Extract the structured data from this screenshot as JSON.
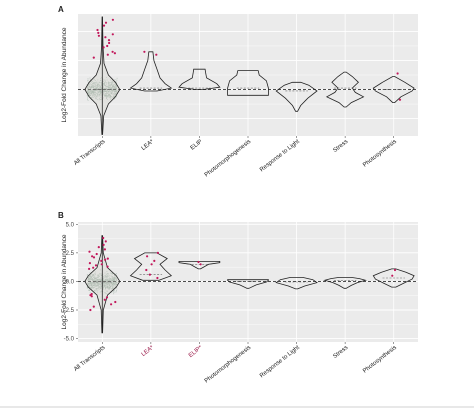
{
  "colors": {
    "panel_bg": "#ebebeb",
    "grid": "#ffffff",
    "violin_stroke": "#222222",
    "jitter_gray": "#9fb3a6",
    "highlight": "#c2185b",
    "highlight_label": "#9b1b4a"
  },
  "chart_data": [
    {
      "type": "violin",
      "panel_label": "A",
      "title": "",
      "ylabel": "Log2-Fold Change in Abundance",
      "xlabel": "",
      "ylim": [
        -1.6,
        2.6
      ],
      "y_ticks": [],
      "grid": true,
      "zero_line": 0,
      "categories": [
        "All Transcripts",
        "LEA*",
        "ELIP",
        "Photomorphogenesis",
        "Response to Light",
        "Stress",
        "Photosynthesis"
      ],
      "highlighted_labels": [],
      "violins": [
        {
          "category": "All Transcripts",
          "min": -1.55,
          "max": 2.5,
          "median": 0.0,
          "profile": [
            [
              -1.55,
              0.02
            ],
            [
              -0.9,
              0.08
            ],
            [
              -0.5,
              0.35
            ],
            [
              -0.25,
              0.75
            ],
            [
              0,
              1.0
            ],
            [
              0.25,
              0.75
            ],
            [
              0.5,
              0.35
            ],
            [
              0.9,
              0.1
            ],
            [
              1.5,
              0.04
            ],
            [
              2.5,
              0.01
            ]
          ]
        },
        {
          "category": "LEA*",
          "min": -0.05,
          "max": 1.3,
          "median": 0.05,
          "profile": [
            [
              -0.05,
              0.3
            ],
            [
              0.05,
              1.0
            ],
            [
              0.2,
              0.7
            ],
            [
              0.4,
              0.45
            ],
            [
              0.7,
              0.3
            ],
            [
              1.0,
              0.15
            ],
            [
              1.3,
              0.1
            ]
          ]
        },
        {
          "category": "ELIP",
          "min": 0.0,
          "max": 0.7,
          "median": 0.05,
          "profile": [
            [
              0,
              0.2
            ],
            [
              0.08,
              1.0
            ],
            [
              0.2,
              0.85
            ],
            [
              0.4,
              0.35
            ],
            [
              0.6,
              0.3
            ],
            [
              0.7,
              0.28
            ]
          ]
        },
        {
          "category": "Photomorphogenesis",
          "min": -0.2,
          "max": 0.65,
          "median": 0.05,
          "profile": [
            [
              -0.2,
              1.0
            ],
            [
              0.05,
              1.0
            ],
            [
              0.3,
              0.9
            ],
            [
              0.5,
              0.55
            ],
            [
              0.65,
              0.5
            ]
          ]
        },
        {
          "category": "Response to Light",
          "min": -0.75,
          "max": 0.25,
          "median": -0.05,
          "profile": [
            [
              -0.75,
              0.05
            ],
            [
              -0.55,
              0.2
            ],
            [
              -0.3,
              0.55
            ],
            [
              -0.05,
              1.0
            ],
            [
              0.15,
              0.6
            ],
            [
              0.25,
              0.2
            ]
          ]
        },
        {
          "category": "Stress",
          "min": -0.6,
          "max": 0.6,
          "median": 0.05,
          "profile": [
            [
              -0.6,
              0.05
            ],
            [
              -0.45,
              0.3
            ],
            [
              -0.25,
              0.9
            ],
            [
              -0.1,
              0.5
            ],
            [
              0.05,
              0.35
            ],
            [
              0.25,
              0.65
            ],
            [
              0.45,
              0.35
            ],
            [
              0.6,
              0.05
            ]
          ]
        },
        {
          "category": "Photosynthesis",
          "min": -0.45,
          "max": 0.45,
          "median": 0.0,
          "profile": [
            [
              -0.45,
              0.05
            ],
            [
              -0.25,
              0.35
            ],
            [
              -0.05,
              0.9
            ],
            [
              0.05,
              1.0
            ],
            [
              0.25,
              0.55
            ],
            [
              0.45,
              0.05
            ]
          ]
        }
      ],
      "highlighted_points": [
        {
          "category": "All Transcripts",
          "y": [
            2.2,
            2.05,
            1.95,
            1.9,
            1.85,
            1.8,
            1.7,
            1.6,
            1.5,
            1.45,
            1.3,
            1.25,
            1.2,
            1.1,
            2.4,
            2.3
          ]
        },
        {
          "category": "LEA*",
          "y": [
            1.3,
            1.2
          ]
        },
        {
          "category": "Photosynthesis",
          "y": [
            0.55,
            -0.35
          ]
        }
      ]
    },
    {
      "type": "violin",
      "panel_label": "B",
      "title": "",
      "ylabel": "Log2-Fold Change in Abundance",
      "xlabel": "",
      "ylim": [
        -5.3,
        5.2
      ],
      "y_ticks": [
        -5.0,
        -2.5,
        0.0,
        2.5,
        5.0
      ],
      "y_tick_labels": [
        "-5.0",
        "-2.5",
        "0.0",
        "2.5",
        "5.0"
      ],
      "grid": true,
      "zero_line": 0,
      "categories": [
        "All Transcripts",
        "LEA*",
        "ELIP*",
        "Photomorphogenesis",
        "Response to Light",
        "Stress",
        "Photosynthesis"
      ],
      "highlighted_labels": [
        "LEA*",
        "ELIP*"
      ],
      "violins": [
        {
          "category": "All Transcripts",
          "min": -4.5,
          "max": 4.0,
          "median": -0.05,
          "profile": [
            [
              -4.5,
              0.02
            ],
            [
              -2.5,
              0.06
            ],
            [
              -1.2,
              0.3
            ],
            [
              -0.5,
              0.8
            ],
            [
              0,
              1.0
            ],
            [
              0.5,
              0.8
            ],
            [
              1.2,
              0.3
            ],
            [
              2.5,
              0.06
            ],
            [
              4.0,
              0.02
            ]
          ]
        },
        {
          "category": "LEA*",
          "min": 0.1,
          "max": 2.5,
          "median": 0.6,
          "profile": [
            [
              0.1,
              0.4
            ],
            [
              0.5,
              1.0
            ],
            [
              1.0,
              0.7
            ],
            [
              1.5,
              0.45
            ],
            [
              2.0,
              0.8
            ],
            [
              2.5,
              0.3
            ]
          ]
        },
        {
          "category": "ELIP*",
          "min": 1.1,
          "max": 1.75,
          "median": 1.5,
          "profile": [
            [
              1.1,
              0.05
            ],
            [
              1.3,
              0.25
            ],
            [
              1.5,
              0.45
            ],
            [
              1.65,
              1.0
            ],
            [
              1.75,
              1.0
            ]
          ]
        },
        {
          "category": "Photomorphogenesis",
          "min": -0.6,
          "max": 0.15,
          "median": 0.0,
          "profile": [
            [
              -0.6,
              0.05
            ],
            [
              -0.3,
              0.4
            ],
            [
              -0.05,
              0.9
            ],
            [
              0.1,
              1.0
            ],
            [
              0.15,
              1.0
            ]
          ]
        },
        {
          "category": "Response to Light",
          "min": -0.65,
          "max": 0.35,
          "median": -0.05,
          "profile": [
            [
              -0.65,
              0.05
            ],
            [
              -0.4,
              0.4
            ],
            [
              -0.1,
              1.0
            ],
            [
              0.15,
              0.8
            ],
            [
              0.35,
              0.3
            ]
          ]
        },
        {
          "category": "Stress",
          "min": -0.6,
          "max": 0.35,
          "median": 0.1,
          "profile": [
            [
              -0.6,
              0.05
            ],
            [
              -0.35,
              0.3
            ],
            [
              -0.1,
              0.6
            ],
            [
              0.1,
              1.0
            ],
            [
              0.25,
              0.7
            ],
            [
              0.35,
              0.3
            ]
          ]
        },
        {
          "category": "Photosynthesis",
          "min": -0.5,
          "max": 1.1,
          "median": 0.3,
          "profile": [
            [
              -0.5,
              0.1
            ],
            [
              -0.1,
              0.55
            ],
            [
              0.2,
              0.9
            ],
            [
              0.5,
              1.0
            ],
            [
              0.8,
              0.6
            ],
            [
              1.1,
              0.1
            ]
          ]
        }
      ],
      "highlighted_points": [
        {
          "category": "All Transcripts",
          "y": [
            3.8,
            3.5,
            3.2,
            3.0,
            2.8,
            2.6,
            2.4,
            2.2,
            2.1,
            2.0,
            1.9,
            1.8,
            1.6,
            1.5,
            1.4,
            1.3,
            1.2,
            1.1,
            -1.1,
            -1.2,
            -1.3,
            -1.4,
            -1.6,
            -1.8,
            -2.0,
            -2.2,
            -2.5
          ]
        },
        {
          "category": "LEA*",
          "y": [
            2.5,
            2.2,
            1.8,
            1.5,
            1.0,
            0.6,
            0.3
          ]
        },
        {
          "category": "ELIP*",
          "y": [
            1.7,
            1.5
          ]
        },
        {
          "category": "Photosynthesis",
          "y": [
            1.0,
            0.5
          ]
        }
      ]
    }
  ]
}
